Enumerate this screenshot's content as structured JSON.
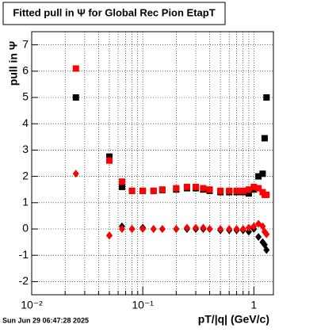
{
  "chart_data": {
    "type": "scatter",
    "title": "Fitted pull in  Ψ  for Global Rec Pion EtapT",
    "y_label": "pull in  Ψ",
    "x_label": "pT/|q| (GeV/c)",
    "timestamp": "Sun Jun 29 06:47:28 2025",
    "log_x": true,
    "grid": true,
    "xlim": [
      0.01,
      1.5
    ],
    "ylim": [
      -2.5,
      7.5
    ],
    "xticks": [
      {
        "value": 0.01,
        "label": "10⁻²"
      },
      {
        "value": 0.1,
        "label": "10⁻¹"
      },
      1
    ],
    "xminorticks": [
      0.02,
      0.03,
      0.04,
      0.05,
      0.06,
      0.07,
      0.08,
      0.09,
      0.2,
      0.3,
      0.4,
      0.5,
      0.6,
      0.7,
      0.8,
      0.9
    ],
    "yticks": [
      -2,
      -1,
      0,
      1,
      2,
      3,
      4,
      5,
      6,
      7
    ],
    "x": [
      0.025,
      0.05,
      0.065,
      0.08,
      0.1,
      0.125,
      0.15,
      0.2,
      0.25,
      0.3,
      0.35,
      0.4,
      0.5,
      0.6,
      0.7,
      0.8,
      0.9,
      1.0,
      1.1,
      1.2,
      1.25,
      1.3
    ],
    "series": [
      {
        "color": "#000000",
        "marker": "square",
        "values": [
          5.0,
          2.75,
          1.6,
          1.45,
          1.45,
          1.45,
          1.48,
          1.5,
          1.55,
          1.55,
          1.5,
          1.45,
          1.4,
          1.4,
          1.4,
          1.4,
          1.35,
          1.5,
          2.0,
          2.1,
          3.45,
          5.0
        ]
      },
      {
        "color": "#ff0000",
        "marker": "square",
        "values": [
          6.1,
          2.6,
          1.8,
          1.45,
          1.45,
          1.45,
          1.5,
          1.55,
          1.6,
          1.6,
          1.55,
          1.5,
          1.45,
          1.45,
          1.45,
          1.45,
          1.5,
          1.6,
          1.55,
          1.4,
          1.3,
          1.3
        ]
      },
      {
        "color": "#000000",
        "marker": "diamond",
        "values": [
          null,
          -0.25,
          0.1,
          0.0,
          0.05,
          0.0,
          0.0,
          0.0,
          0.0,
          0.0,
          0.0,
          0.0,
          -0.05,
          -0.05,
          -0.05,
          -0.05,
          -0.1,
          0.0,
          -0.3,
          -0.5,
          -0.6,
          -0.8
        ]
      },
      {
        "color": "#ff0000",
        "marker": "diamond",
        "values": [
          2.1,
          -0.25,
          0.0,
          0.0,
          0.0,
          0.0,
          0.0,
          0.0,
          0.05,
          0.05,
          0.05,
          0.0,
          0.0,
          0.0,
          0.0,
          0.0,
          0.05,
          0.1,
          0.2,
          0.1,
          -0.1,
          -0.2
        ]
      }
    ]
  }
}
